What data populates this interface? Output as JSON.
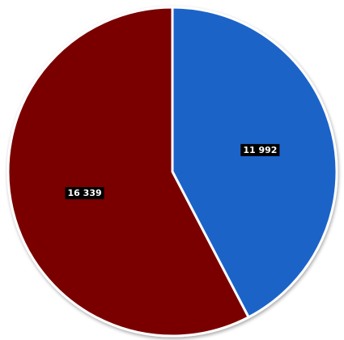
{
  "chart_data": {
    "type": "pie",
    "title": "",
    "legend": "none",
    "slices": [
      {
        "label": "11 992",
        "value": 11992,
        "color": "#1a64c8"
      },
      {
        "label": "16 339",
        "value": 16339,
        "color": "#7a0000"
      }
    ],
    "start_angle_deg": 0,
    "direction": "clockwise",
    "separator_color": "#ffffff"
  }
}
